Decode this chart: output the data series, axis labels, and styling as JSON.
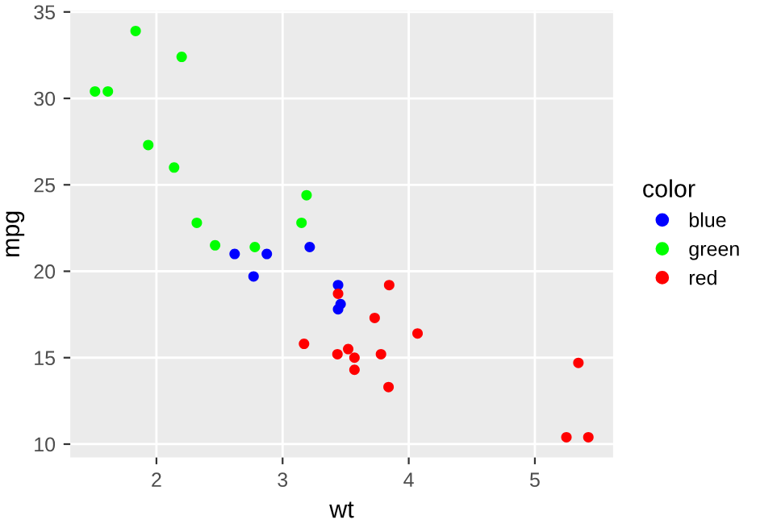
{
  "chart_data": {
    "type": "scatter",
    "xlabel": "wt",
    "ylabel": "mpg",
    "legend_title": "color",
    "xlim": [
      1.317,
      5.62
    ],
    "ylim": [
      9.225,
      35.075
    ],
    "xticks": [
      2,
      3,
      4,
      5
    ],
    "yticks": [
      10,
      15,
      20,
      25,
      30,
      35
    ],
    "grid": true,
    "legend": "right",
    "marker": "circle",
    "series": [
      {
        "name": "blue",
        "color": "#0000ff",
        "x": [
          2.62,
          2.875,
          3.215,
          3.46,
          3.44,
          3.44,
          2.77
        ],
        "values": [
          21.0,
          21.0,
          21.4,
          18.1,
          19.2,
          17.8,
          19.7
        ]
      },
      {
        "name": "green",
        "color": "#00ff00",
        "x": [
          2.32,
          3.19,
          3.15,
          2.2,
          1.615,
          1.835,
          2.465,
          1.935,
          2.14,
          1.513,
          2.78
        ],
        "values": [
          22.8,
          24.4,
          22.8,
          32.4,
          30.4,
          33.9,
          21.5,
          27.3,
          26.0,
          30.4,
          21.4
        ]
      },
      {
        "name": "red",
        "color": "#ff0000",
        "x": [
          3.44,
          3.57,
          4.07,
          3.73,
          3.78,
          5.25,
          5.424,
          5.345,
          3.52,
          3.435,
          3.84,
          3.845,
          3.17,
          3.57
        ],
        "values": [
          18.7,
          14.3,
          16.4,
          17.3,
          15.2,
          10.4,
          10.4,
          14.7,
          15.5,
          15.2,
          13.3,
          19.2,
          15.8,
          15.0
        ]
      }
    ]
  }
}
